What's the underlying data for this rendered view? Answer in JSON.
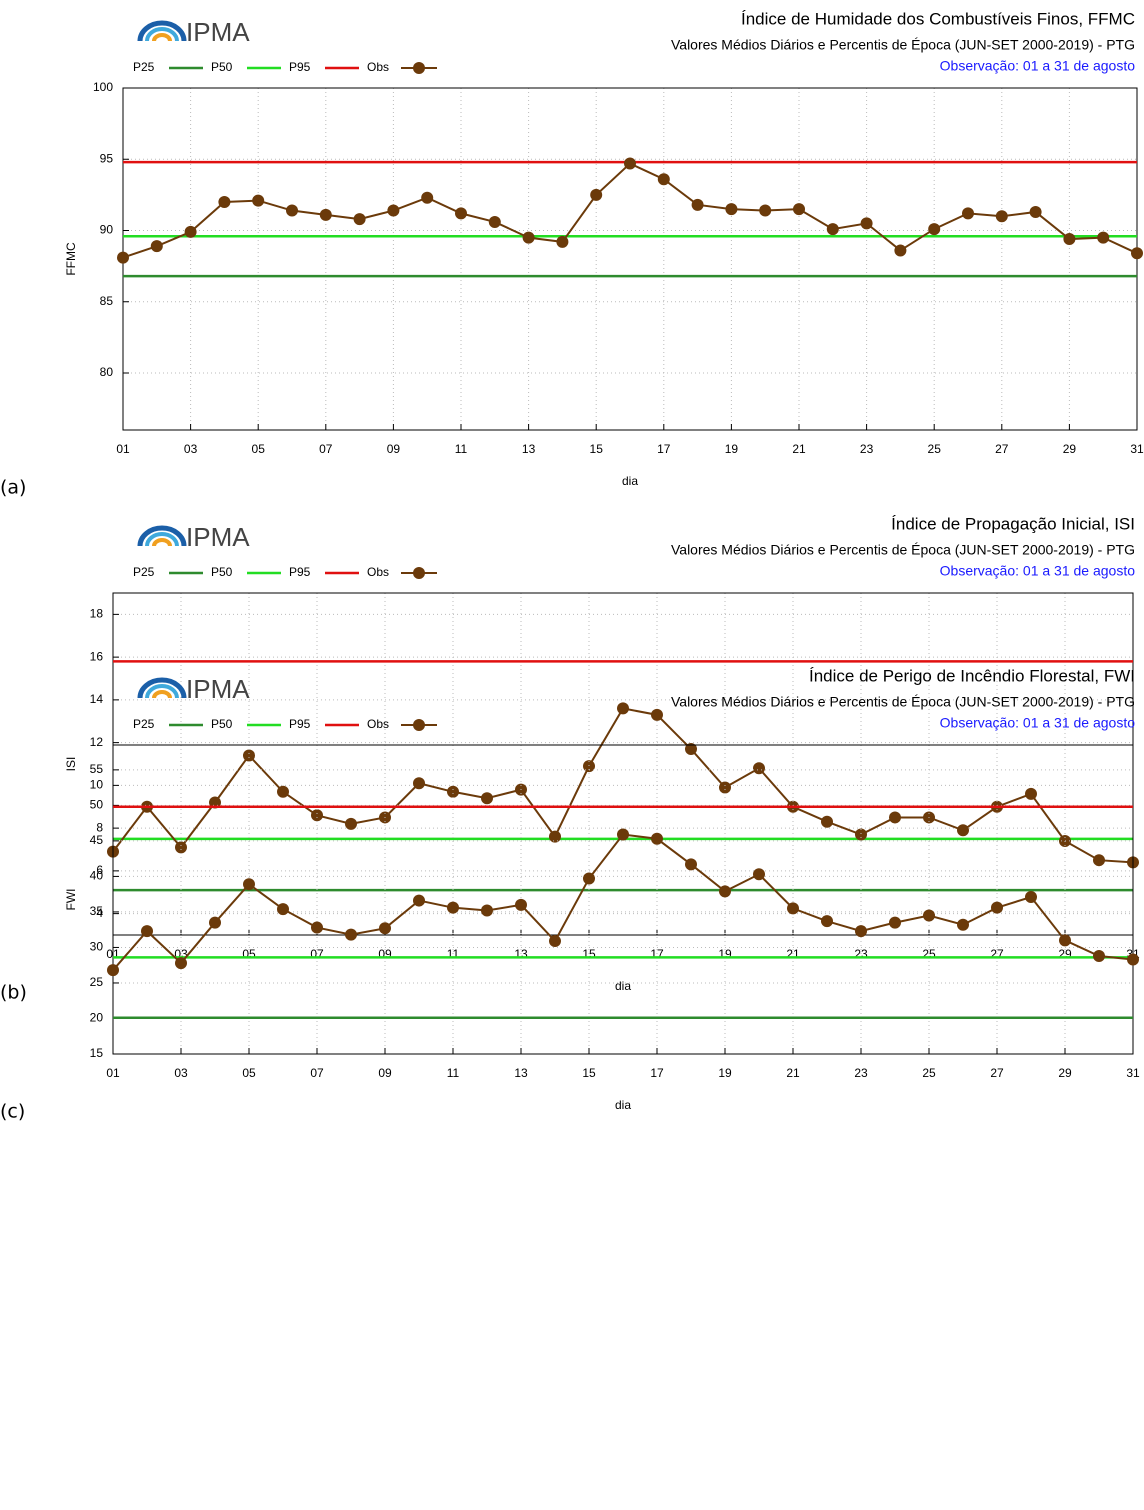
{
  "chart_data": [
    {
      "type": "line",
      "panel_label": "(a)",
      "logo": "IPMA",
      "title": "Índice de Humidade dos Combustíveis Finos, FFMC",
      "subtitle": "Valores Médios Diários e Percentis de Época (JUN-SET 2000-2019) - PTG",
      "note": "Observação: 01 a 31 de agosto",
      "x_label": "dia",
      "y_label": "FFMC",
      "grid": true,
      "x": [
        1,
        2,
        3,
        4,
        5,
        6,
        7,
        8,
        9,
        10,
        11,
        12,
        13,
        14,
        15,
        16,
        17,
        18,
        19,
        20,
        21,
        22,
        23,
        24,
        25,
        26,
        27,
        28,
        29,
        30,
        31
      ],
      "xlim": [
        1,
        31
      ],
      "xticks": [
        {
          "value": 1,
          "label": "01"
        },
        {
          "value": 3,
          "label": "03"
        },
        {
          "value": 5,
          "label": "05"
        },
        {
          "value": 7,
          "label": "07"
        },
        {
          "value": 9,
          "label": "09"
        },
        11,
        13,
        15,
        17,
        19,
        21,
        23,
        25,
        27,
        29,
        31
      ],
      "ylim": [
        76,
        100
      ],
      "yticks": [
        80,
        85,
        90,
        95,
        100
      ],
      "reference_lines": [
        {
          "name": "P25",
          "color": "#2e8b2e",
          "value": 86.8
        },
        {
          "name": "P50",
          "color": "#22dd22",
          "value": 89.6
        },
        {
          "name": "P95",
          "color": "#e01010",
          "value": 94.8
        }
      ],
      "series": [
        {
          "name": "Obs",
          "color": "#6b3a0a",
          "values": [
            88.1,
            88.9,
            89.9,
            92.0,
            92.1,
            91.4,
            91.1,
            90.8,
            91.4,
            92.3,
            91.2,
            90.6,
            89.5,
            89.2,
            92.5,
            94.7,
            93.6,
            91.8,
            91.5,
            91.4,
            91.5,
            90.1,
            90.5,
            88.6,
            90.1,
            91.2,
            91.0,
            91.3,
            89.4,
            89.5,
            88.4
          ]
        }
      ]
    },
    {
      "type": "line",
      "panel_label": "(b)",
      "logo": "IPMA",
      "title": "Índice de Propagação Inicial, ISI",
      "subtitle": "Valores Médios Diários e Percentis de Época (JUN-SET 2000-2019) - PTG",
      "note": "Observação: 01 a 31 de agosto",
      "x_label": "dia",
      "y_label": "ISI",
      "grid": true,
      "x": [
        1,
        2,
        3,
        4,
        5,
        6,
        7,
        8,
        9,
        10,
        11,
        12,
        13,
        14,
        15,
        16,
        17,
        18,
        19,
        20,
        21,
        22,
        23,
        24,
        25,
        26,
        27,
        28,
        29,
        30,
        31
      ],
      "xlim": [
        1,
        31
      ],
      "xticks": [
        {
          "value": 1,
          "label": "01"
        },
        {
          "value": 3,
          "label": "03"
        },
        {
          "value": 5,
          "label": "05"
        },
        {
          "value": 7,
          "label": "07"
        },
        {
          "value": 9,
          "label": "09"
        },
        11,
        13,
        15,
        17,
        19,
        21,
        23,
        25,
        27,
        29,
        31
      ],
      "ylim": [
        3,
        19
      ],
      "yticks": [
        4,
        6,
        8,
        10,
        12,
        14,
        16,
        18
      ],
      "reference_lines": [
        {
          "name": "P25",
          "color": "#2e8b2e",
          "value": 5.1
        },
        {
          "name": "P50",
          "color": "#22dd22",
          "value": 7.5
        },
        {
          "name": "P95",
          "color": "#e01010",
          "value": 15.8
        }
      ],
      "series": [
        {
          "name": "Obs",
          "color": "#6b3a0a",
          "values": [
            6.9,
            9.0,
            7.1,
            9.2,
            11.4,
            9.7,
            8.6,
            8.2,
            8.5,
            10.1,
            9.7,
            9.4,
            9.8,
            7.6,
            10.9,
            13.6,
            13.3,
            11.7,
            9.9,
            10.8,
            9.0,
            8.3,
            7.7,
            8.5,
            8.5,
            7.9,
            9.0,
            9.6,
            7.4,
            6.5,
            6.4
          ]
        }
      ]
    },
    {
      "type": "line",
      "panel_label": "(c)",
      "logo": "IPMA",
      "title": "Índice de Perigo de Incêndio Florestal, FWI",
      "subtitle": "Valores Médios Diários e Percentis de Época (JUN-SET 2000-2019) - PTG",
      "note": "Observação: 01 a 31 de agosto",
      "x_label": "dia",
      "y_label": "FWI",
      "grid": true,
      "x": [
        1,
        2,
        3,
        4,
        5,
        6,
        7,
        8,
        9,
        10,
        11,
        12,
        13,
        14,
        15,
        16,
        17,
        18,
        19,
        20,
        21,
        22,
        23,
        24,
        25,
        26,
        27,
        28,
        29,
        30,
        31
      ],
      "xlim": [
        1,
        31
      ],
      "xticks": [
        {
          "value": 1,
          "label": "01"
        },
        {
          "value": 3,
          "label": "03"
        },
        {
          "value": 5,
          "label": "05"
        },
        {
          "value": 7,
          "label": "07"
        },
        {
          "value": 9,
          "label": "09"
        },
        11,
        13,
        15,
        17,
        19,
        21,
        23,
        25,
        27,
        29,
        31
      ],
      "ylim": [
        15,
        58.5
      ],
      "yticks": [
        15,
        20,
        25,
        30,
        35,
        40,
        45,
        50,
        55
      ],
      "reference_lines": [
        {
          "name": "P25",
          "color": "#2e8b2e",
          "value": 20.1
        },
        {
          "name": "P50",
          "color": "#22dd22",
          "value": 28.6
        },
        {
          "name": "P95",
          "color": "#e01010",
          "value": 49.8
        }
      ],
      "series": [
        {
          "name": "Obs",
          "color": "#6b3a0a",
          "values": [
            26.8,
            32.3,
            27.8,
            33.5,
            38.9,
            35.4,
            32.8,
            31.8,
            32.7,
            36.6,
            35.6,
            35.2,
            36.0,
            30.9,
            39.7,
            45.9,
            45.3,
            41.7,
            37.9,
            40.3,
            35.5,
            33.7,
            32.3,
            33.5,
            34.5,
            33.2,
            35.6,
            37.1,
            31.0,
            28.8,
            28.3
          ]
        }
      ]
    }
  ]
}
